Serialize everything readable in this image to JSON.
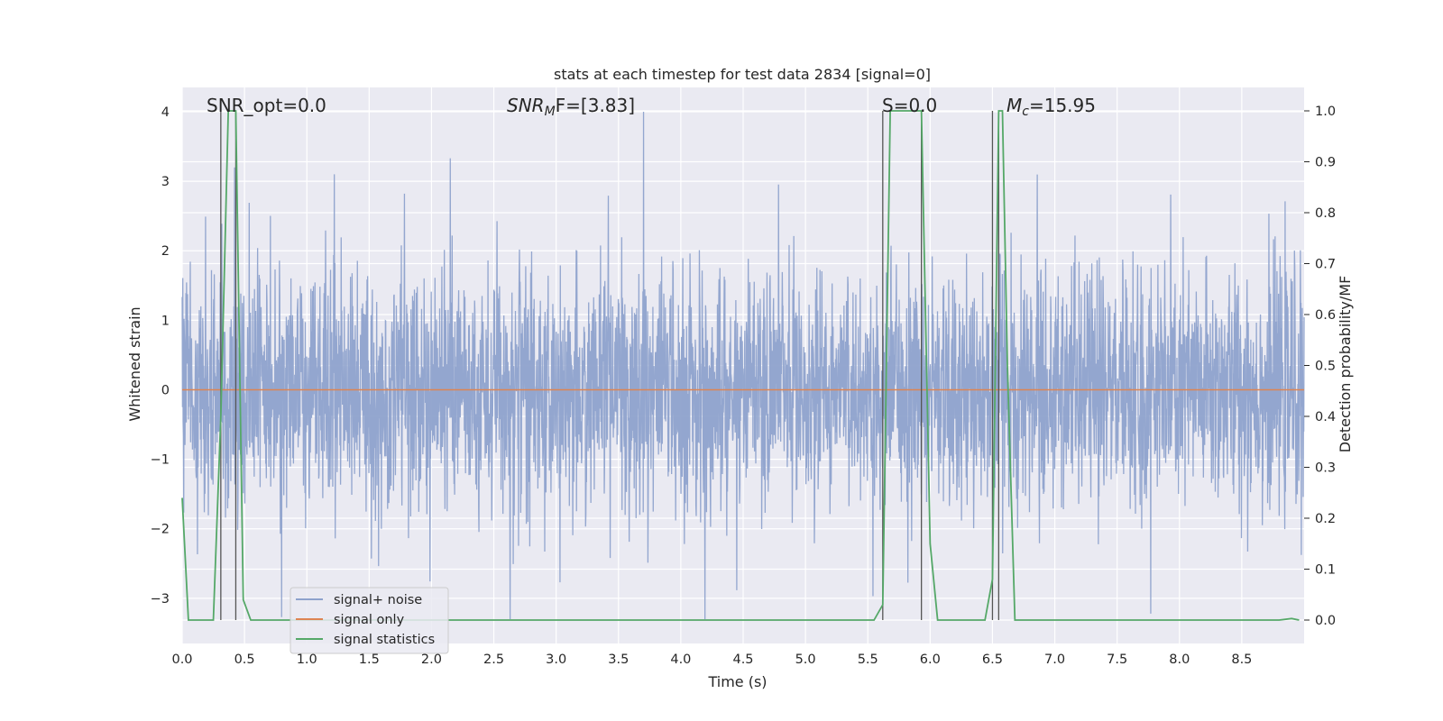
{
  "chart_data": {
    "type": "line",
    "title": "stats at each timestep for test data 2834 [signal=0]",
    "xlabel": "Time (s)",
    "ylabel_left": "Whitened strain",
    "ylabel_right": "Detection probability/MF",
    "xlim": [
      0.0,
      9.0
    ],
    "ylim_left": [
      -3.65,
      4.35
    ],
    "ylim_right": [
      -0.046,
      1.046
    ],
    "x_ticks": [
      "0.0",
      "0.5",
      "1.0",
      "1.5",
      "2.0",
      "2.5",
      "3.0",
      "3.5",
      "4.0",
      "4.5",
      "5.0",
      "5.5",
      "6.0",
      "6.5",
      "7.0",
      "7.5",
      "8.0",
      "8.5"
    ],
    "y_left_ticks": [
      "−3",
      "−2",
      "−1",
      "0",
      "1",
      "2",
      "3",
      "4"
    ],
    "y_right_ticks": [
      "0.0",
      "0.1",
      "0.2",
      "0.3",
      "0.4",
      "0.5",
      "0.6",
      "0.7",
      "0.8",
      "0.9",
      "1.0"
    ],
    "grid": true,
    "legend_position": "lower-left",
    "annotations": {
      "snr_opt": "SNR_opt=0.0",
      "snr_mf_main": "SNR",
      "snr_mf_sub": "M",
      "snr_mf_rest": "F=[3.83]",
      "s_val": "S=0.0",
      "mc_main": "M",
      "mc_sub": "c",
      "mc_rest": "=15.95"
    },
    "series": [
      {
        "name": "signal+ noise",
        "color": "#8ea2cc",
        "kind": "noise",
        "amplitude_range": [
          -3.3,
          4.0
        ],
        "notable_peaks": [
          [
            3.7,
            4.0
          ],
          [
            2.15,
            3.33
          ],
          [
            1.22,
            3.1
          ],
          [
            0.42,
            3.2
          ],
          [
            2.63,
            -3.3
          ],
          [
            7.77,
            -3.22
          ]
        ]
      },
      {
        "name": "signal only",
        "color": "#dd8452",
        "x": [
          0.0,
          9.0
        ],
        "y": [
          0.0,
          0.0
        ]
      },
      {
        "name": "signal statistics",
        "color": "#55a868",
        "axis": "right",
        "x": [
          0.0,
          0.05,
          0.25,
          0.31,
          0.37,
          0.43,
          0.49,
          0.55,
          5.55,
          5.62,
          5.68,
          5.75,
          5.93,
          6.0,
          6.06,
          6.44,
          6.5,
          6.55,
          6.58,
          6.62,
          6.68,
          8.8,
          8.9,
          8.96
        ],
        "y": [
          0.24,
          0.0,
          0.0,
          0.4,
          1.0,
          1.0,
          0.04,
          0.0,
          0.0,
          0.03,
          1.0,
          1.0,
          1.0,
          0.15,
          0.0,
          0.0,
          0.08,
          1.0,
          1.0,
          0.5,
          0.0,
          0.0,
          0.003,
          0.0
        ]
      }
    ],
    "vertical_markers": [
      0.31,
      0.43,
      5.62,
      5.93,
      6.5,
      6.55
    ]
  }
}
